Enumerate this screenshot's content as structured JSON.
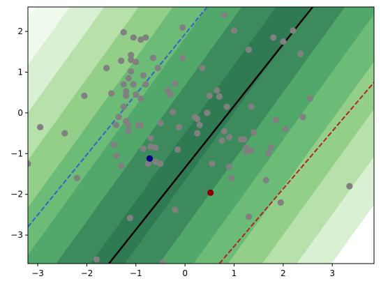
{
  "chart_data": {
    "type": "scatter",
    "title": "",
    "xlabel": "",
    "ylabel": "",
    "xlim": [
      -3.2,
      3.85
    ],
    "ylim": [
      -3.7,
      2.6
    ],
    "x_ticks": [
      -3,
      -2,
      -1,
      0,
      1,
      2,
      3
    ],
    "y_ticks": [
      -3,
      -2,
      -1,
      0,
      1,
      2
    ],
    "x_tick_labels": [
      "−3",
      "−2",
      "−1",
      "0",
      "1",
      "2",
      "3"
    ],
    "y_tick_labels": [
      "−3",
      "−2",
      "−1",
      "0",
      "1",
      "2"
    ],
    "grid": false,
    "background": {
      "type": "filled_contour",
      "field": "x - 0.6*y",
      "levels": [
        -4.6,
        -3.9,
        -3.2,
        -2.5,
        -1.8,
        -1.1,
        -0.4,
        0.3,
        1.0,
        1.7,
        2.4,
        3.1,
        3.8,
        4.5,
        5.2
      ],
      "colors": [
        "#f0f9ee",
        "#d9f0d3",
        "#b7e0aa",
        "#93cf89",
        "#6cbb76",
        "#52a76a",
        "#3d8b5d",
        "#2f7a52",
        "#3d8b5d",
        "#52a76a",
        "#6cbb76",
        "#93cf89",
        "#b7e0aa",
        "#d9f0d3"
      ]
    },
    "lines": [
      {
        "style": "solid",
        "color": "#000000",
        "points": [
          [
            -1.55,
            -3.7
          ],
          [
            2.6,
            2.6
          ]
        ]
      },
      {
        "style": "dashed",
        "color": "#3a5fcd",
        "points": [
          [
            -3.2,
            -2.8
          ],
          [
            0.45,
            2.6
          ]
        ]
      },
      {
        "style": "dashed",
        "color": "#b22222",
        "points": [
          [
            0.7,
            -3.7
          ],
          [
            3.85,
            0.75
          ]
        ]
      }
    ],
    "series": [
      {
        "color": "#808080",
        "points": [
          [
            -3.2,
            -1.25
          ],
          [
            -2.95,
            -0.35
          ],
          [
            -2.45,
            -0.5
          ],
          [
            -2.2,
            -1.6
          ],
          [
            -2.05,
            0.42
          ],
          [
            -1.8,
            -3.6
          ],
          [
            -1.6,
            1.1
          ],
          [
            -1.5,
            0.48
          ],
          [
            -1.45,
            -0.78
          ],
          [
            -1.4,
            -0.3
          ],
          [
            -1.4,
            -1.05
          ],
          [
            -1.35,
            -0.1
          ],
          [
            -1.3,
            -1.3
          ],
          [
            -1.3,
            1.28
          ],
          [
            -1.25,
            0.7
          ],
          [
            -1.25,
            1.98
          ],
          [
            -1.25,
            0.15
          ],
          [
            -1.2,
            0.42
          ],
          [
            -1.2,
            0.53
          ],
          [
            -1.2,
            -0.2
          ],
          [
            -1.15,
            0.85
          ],
          [
            -1.15,
            -0.45
          ],
          [
            -1.15,
            -0.3
          ],
          [
            -1.12,
            -2.58
          ],
          [
            -1.1,
            1.42
          ],
          [
            -1.1,
            1.3
          ],
          [
            -1.1,
            1.02
          ],
          [
            -1.05,
            1.85
          ],
          [
            -1.05,
            0.7
          ],
          [
            -1.0,
            0.45
          ],
          [
            -1.0,
            1.25
          ],
          [
            -0.95,
            -0.3
          ],
          [
            -0.9,
            0.35
          ],
          [
            -0.9,
            -0.3
          ],
          [
            -0.9,
            1.8
          ],
          [
            -0.85,
            0.92
          ],
          [
            -0.85,
            -0.88
          ],
          [
            -0.8,
            0.7
          ],
          [
            -0.8,
            1.85
          ],
          [
            -0.75,
            -1.25
          ],
          [
            -0.7,
            -0.62
          ],
          [
            -0.7,
            -0.83
          ],
          [
            -0.65,
            1.35
          ],
          [
            -0.6,
            -0.85
          ],
          [
            -0.6,
            -1.2
          ],
          [
            -0.55,
            1.1
          ],
          [
            -0.5,
            -0.25
          ],
          [
            -0.5,
            -1.25
          ],
          [
            -0.45,
            -3.68
          ],
          [
            -0.35,
            0.55
          ],
          [
            -0.3,
            0.45
          ],
          [
            -0.25,
            0.02
          ],
          [
            -0.2,
            -2.38
          ],
          [
            -0.2,
            0.72
          ],
          [
            -0.15,
            -0.9
          ],
          [
            -0.12,
            -0.35
          ],
          [
            -0.05,
            2.1
          ],
          [
            -0.05,
            1.35
          ],
          [
            0.2,
            -0.1
          ],
          [
            0.25,
            -0.5
          ],
          [
            0.25,
            -0.15
          ],
          [
            0.3,
            -0.3
          ],
          [
            0.35,
            1.1
          ],
          [
            0.45,
            0.0
          ],
          [
            0.5,
            0.42
          ],
          [
            0.55,
            -1.25
          ],
          [
            0.65,
            0.55
          ],
          [
            0.7,
            0.4
          ],
          [
            0.75,
            -0.68
          ],
          [
            0.8,
            2.4
          ],
          [
            0.8,
            -0.45
          ],
          [
            0.85,
            0.15
          ],
          [
            0.9,
            -0.6
          ],
          [
            0.9,
            -1.32
          ],
          [
            0.95,
            -1.6
          ],
          [
            1.0,
            2.02
          ],
          [
            1.15,
            -0.65
          ],
          [
            1.2,
            -0.65
          ],
          [
            1.25,
            -0.85
          ],
          [
            1.25,
            -0.95
          ],
          [
            1.3,
            1.55
          ],
          [
            1.3,
            -2.55
          ],
          [
            1.35,
            -0.92
          ],
          [
            1.35,
            0.15
          ],
          [
            1.4,
            -0.48
          ],
          [
            1.65,
            -1.65
          ],
          [
            1.7,
            -1.0
          ],
          [
            1.75,
            -0.85
          ],
          [
            1.8,
            1.85
          ],
          [
            1.85,
            -0.18
          ],
          [
            1.95,
            -2.2
          ],
          [
            2.0,
            1.75
          ],
          [
            2.05,
            -0.4
          ],
          [
            2.2,
            2.02
          ],
          [
            2.35,
            1.45
          ],
          [
            2.4,
            -0.1
          ],
          [
            2.55,
            0.35
          ],
          [
            3.35,
            -1.8
          ]
        ]
      },
      {
        "color": "#00008b",
        "points": [
          [
            -0.72,
            -1.12
          ]
        ]
      },
      {
        "color": "#8b0000",
        "points": [
          [
            0.52,
            -1.96
          ]
        ]
      }
    ]
  }
}
